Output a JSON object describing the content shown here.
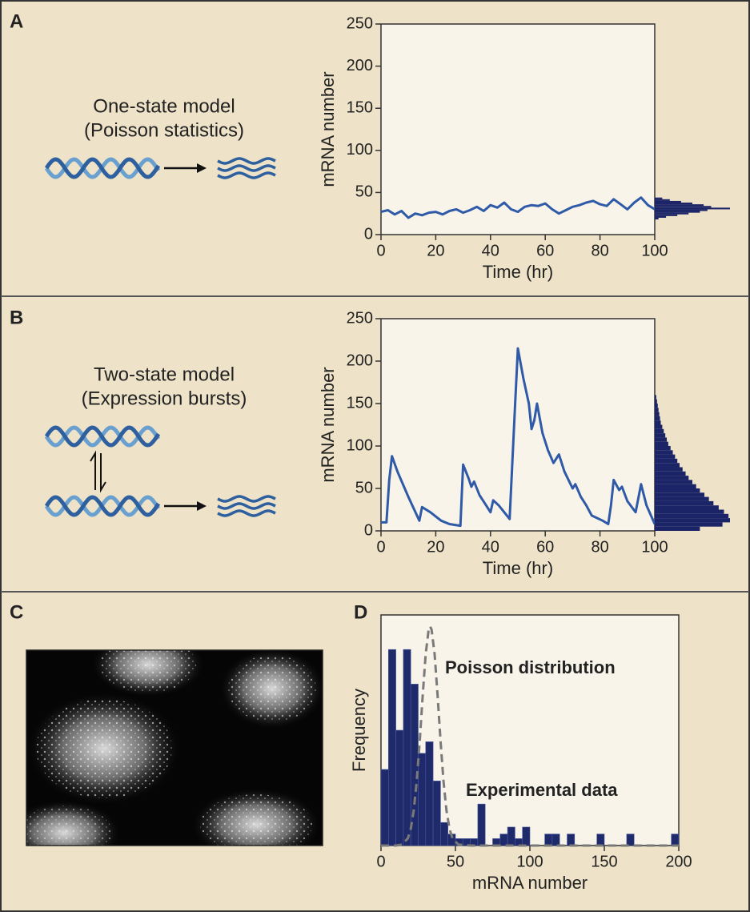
{
  "panels": [
    {
      "letter": "A",
      "caption": [
        "One-state model",
        "(Poisson statistics)"
      ]
    },
    {
      "letter": "B",
      "caption": [
        "Two-state model",
        "(Expression bursts)"
      ]
    },
    {
      "letter": "C"
    },
    {
      "letter": "D"
    }
  ],
  "chart_data": [
    {
      "type": "line",
      "xlabel": "Time (hr)",
      "ylabel": "mRNA number",
      "color": "#2f5aa8",
      "x": [
        0,
        2.5,
        5,
        7.5,
        10,
        12.5,
        15,
        17.5,
        20,
        22.5,
        25,
        27.5,
        30,
        32.5,
        35,
        37.5,
        40,
        42.5,
        45,
        47.5,
        50,
        52.5,
        55,
        57.5,
        60,
        62.5,
        65,
        67.5,
        70,
        72.5,
        75,
        77.5,
        80,
        82.5,
        85,
        87.5,
        90,
        92.5,
        95,
        97.5,
        100
      ],
      "values": [
        27,
        29,
        24,
        28,
        20,
        25,
        23,
        26,
        27,
        24,
        28,
        30,
        26,
        29,
        33,
        28,
        35,
        32,
        38,
        30,
        27,
        33,
        35,
        34,
        37,
        30,
        25,
        29,
        33,
        35,
        38,
        40,
        36,
        34,
        42,
        36,
        30,
        38,
        44,
        35,
        30
      ],
      "xlim": [
        0,
        100
      ],
      "xticks": [
        0,
        20,
        40,
        60,
        80,
        100
      ],
      "ylim": [
        0,
        250
      ],
      "yticks": [
        0,
        50,
        100,
        150,
        200,
        250
      ],
      "side_histogram": {
        "color": "#1b2466",
        "bins": [
          18,
          20,
          22,
          24,
          26,
          28,
          30,
          32,
          34,
          36,
          38,
          40,
          42,
          44
        ],
        "counts": [
          5,
          15,
          30,
          45,
          60,
          70,
          100,
          75,
          65,
          50,
          35,
          20,
          10
        ]
      }
    },
    {
      "type": "line",
      "xlabel": "Time (hr)",
      "ylabel": "mRNA number",
      "color": "#2f5aa8",
      "x": [
        0,
        2,
        3,
        4,
        6,
        10,
        14,
        15,
        18,
        22,
        25,
        29,
        30,
        32,
        33,
        34,
        36,
        38,
        40,
        41,
        43,
        44,
        47,
        49,
        50,
        52,
        54,
        55,
        56,
        57,
        59,
        61,
        63,
        65,
        67,
        70,
        71,
        73,
        75,
        77,
        79,
        81,
        83,
        84,
        85,
        87,
        88,
        90,
        93,
        95,
        97,
        100
      ],
      "values": [
        10,
        10,
        60,
        88,
        70,
        40,
        12,
        28,
        22,
        12,
        8,
        6,
        78,
        62,
        52,
        58,
        42,
        32,
        22,
        36,
        30,
        26,
        14,
        150,
        215,
        180,
        150,
        120,
        130,
        150,
        115,
        95,
        80,
        90,
        70,
        50,
        55,
        40,
        30,
        18,
        15,
        12,
        8,
        30,
        60,
        48,
        52,
        35,
        22,
        55,
        30,
        8
      ],
      "xlim": [
        0,
        100
      ],
      "xticks": [
        0,
        20,
        40,
        60,
        80,
        100
      ],
      "ylim": [
        0,
        250
      ],
      "yticks": [
        0,
        50,
        100,
        150,
        200,
        250
      ],
      "side_histogram": {
        "color": "#1b2466",
        "bins": [
          0,
          5,
          10,
          15,
          20,
          25,
          30,
          35,
          40,
          45,
          50,
          55,
          60,
          65,
          70,
          75,
          80,
          85,
          90,
          95,
          100,
          105,
          110,
          115,
          120,
          125,
          130,
          135,
          140,
          145,
          150,
          155,
          160
        ],
        "counts": [
          60,
          90,
          100,
          98,
          92,
          85,
          78,
          72,
          66,
          60,
          55,
          50,
          45,
          41,
          37,
          33,
          30,
          27,
          24,
          21,
          18,
          16,
          14,
          12,
          10,
          8,
          7,
          6,
          5,
          4,
          3,
          2
        ]
      }
    },
    {
      "type": "histogram",
      "xlabel": "mRNA number",
      "ylabel": "Frequency",
      "color": "#1f2a6b",
      "data_label": "Experimental data",
      "bins": [
        0,
        5,
        10,
        15,
        20,
        25,
        30,
        35,
        40,
        45,
        50,
        55,
        60,
        65,
        70,
        75,
        80,
        85,
        90,
        95,
        100,
        105,
        110,
        115,
        120,
        125,
        130,
        135,
        140,
        145,
        150,
        155,
        160,
        165,
        170,
        175,
        180,
        185,
        190,
        195,
        200
      ],
      "values": [
        33,
        85,
        50,
        85,
        70,
        40,
        45,
        28,
        10,
        5,
        3,
        3,
        3,
        18,
        0,
        3,
        5,
        8,
        3,
        8,
        0,
        0,
        5,
        5,
        0,
        5,
        0,
        0,
        0,
        5,
        0,
        0,
        0,
        5,
        0,
        0,
        0,
        0,
        0,
        5
      ],
      "xlim": [
        0,
        200
      ],
      "xticks": [
        0,
        50,
        100,
        150,
        200
      ],
      "ylim": [
        0,
        100
      ],
      "curve": {
        "label": "Poisson distribution",
        "color": "#7a7a7a",
        "x": [
          0,
          10,
          14,
          18,
          20,
          22,
          24,
          26,
          28,
          30,
          32,
          33,
          34,
          36,
          38,
          40,
          42,
          44,
          46,
          48,
          52,
          60,
          200
        ],
        "values": [
          0,
          0,
          0.4,
          3.1,
          7.3,
          15.2,
          27.8,
          45.3,
          65.1,
          82.9,
          93.6,
          95,
          93.6,
          82.9,
          65.1,
          45.3,
          27.8,
          15.2,
          7.3,
          3.1,
          0.4,
          0,
          0
        ]
      }
    }
  ]
}
